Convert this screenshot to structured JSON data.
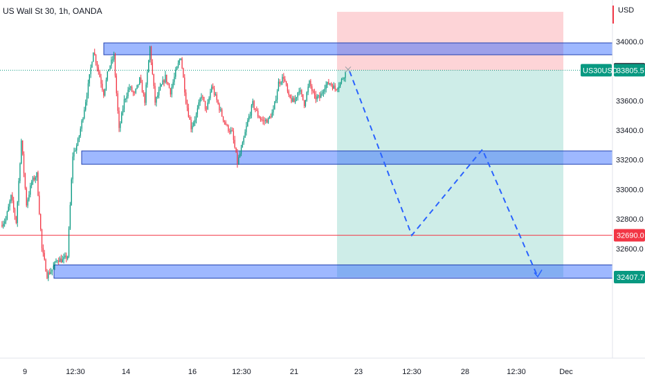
{
  "chart_data": {
    "type": "candlestick",
    "title": "US Wall St 30, 1h, OANDA",
    "currency": "USD",
    "symbol": "US30USD",
    "last_price": 33805.5,
    "ylim": [
      31860,
      34280
    ],
    "y_ticks": [
      32600.0,
      32800.0,
      33000.0,
      33200.0,
      33400.0,
      33600.0,
      34000.0
    ],
    "x_ticks": [
      "9",
      "12:30",
      "14",
      "16",
      "12:30",
      "21",
      "23",
      "12:30",
      "28",
      "12:30",
      "Dec"
    ],
    "price_labels": [
      {
        "value": 33812.5,
        "color": "#363a45"
      },
      {
        "value": 33805.5,
        "color": "#089981"
      },
      {
        "value": 32690.0,
        "color": "#f23645"
      },
      {
        "value": 32407.7,
        "color": "#089981"
      }
    ],
    "zones": [
      {
        "name": "resistance",
        "from": 33910,
        "to": 33990
      },
      {
        "name": "support",
        "from": 33170,
        "to": 33260
      },
      {
        "name": "demand",
        "from": 32400,
        "to": 32490
      }
    ],
    "position": {
      "side": "short",
      "entry": 33805.5,
      "stop": 34200,
      "target": 32407.7
    },
    "horizontal_line": 32690.0,
    "projection": [
      33800,
      32690,
      33270,
      32410
    ],
    "candle_path": [
      32760,
      32800,
      32950,
      32780,
      33330,
      32900,
      33050,
      33100,
      32600,
      32420,
      32460,
      32530,
      32520,
      32550,
      33230,
      33320,
      33500,
      33700,
      33940,
      33800,
      33650,
      33820,
      33900,
      33400,
      33600,
      33690,
      33640,
      33740,
      33600,
      33960,
      33590,
      33680,
      33760,
      33660,
      33790,
      33900,
      33600,
      33420,
      33500,
      33640,
      33530,
      33700,
      33600,
      33500,
      33420,
      33380,
      33180,
      33300,
      33460,
      33580,
      33500,
      33460,
      33470,
      33530,
      33720,
      33760,
      33620,
      33590,
      33680,
      33580,
      33720,
      33620,
      33620,
      33700,
      33720,
      33680,
      33720,
      33790
    ]
  }
}
